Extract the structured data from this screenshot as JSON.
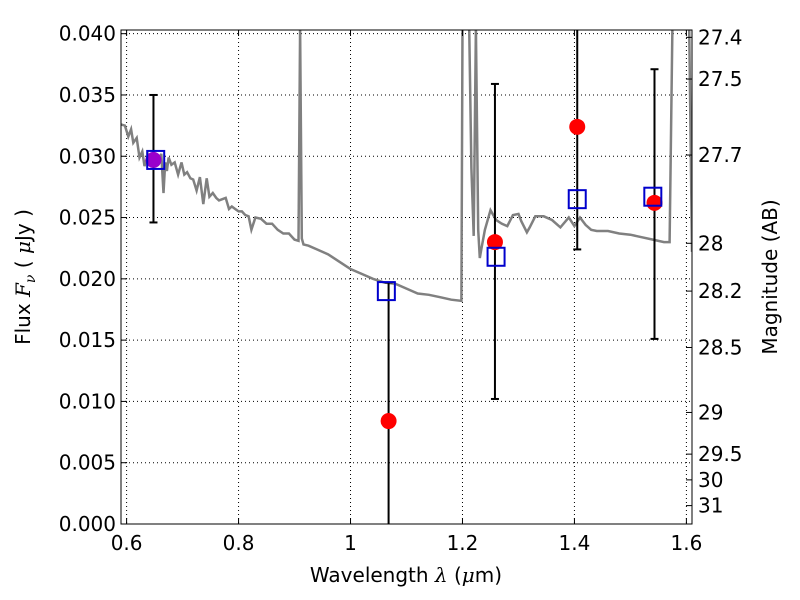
{
  "chart_data": {
    "type": "scatter",
    "title": "",
    "xlabel": "Wavelength  λ (μm)",
    "ylabel": "Flux  F_ν  ( μJy )",
    "y2label": "Magnitude (AB)",
    "xlim": [
      0.59,
      1.61
    ],
    "ylim": [
      0.0,
      0.0403
    ],
    "grid": true,
    "x_ticks": [
      0.6,
      0.8,
      1.0,
      1.2,
      1.4,
      1.6
    ],
    "x_tick_labels": [
      "0.6",
      "0.8",
      "1",
      "1.2",
      "1.4",
      "1.6"
    ],
    "y_ticks": [
      0.0,
      0.005,
      0.01,
      0.015,
      0.02,
      0.025,
      0.03,
      0.035,
      0.04
    ],
    "y_tick_labels": [
      "0.000",
      "0.005",
      "0.010",
      "0.015",
      "0.020",
      "0.025",
      "0.030",
      "0.035",
      "0.040"
    ],
    "y2_ticks": [
      {
        "label": "27.4",
        "flux": 0.0397
      },
      {
        "label": "27.5",
        "flux": 0.0363
      },
      {
        "label": "27.7",
        "flux": 0.0301
      },
      {
        "label": "28",
        "flux": 0.0229
      },
      {
        "label": "28.2",
        "flux": 0.019
      },
      {
        "label": "28.5",
        "flux": 0.0144
      },
      {
        "label": "29",
        "flux": 0.0091
      },
      {
        "label": "29.5",
        "flux": 0.0057
      },
      {
        "label": "30",
        "flux": 0.0036
      },
      {
        "label": "31",
        "flux": 0.0015
      }
    ],
    "colors": {
      "model": "#808080",
      "observed": "#ff0000",
      "model_photometry": "#0000cc",
      "errorbar": "#000000",
      "overlap": "#9900cc"
    },
    "series": [
      {
        "role": "model_spectrum",
        "x": [
          0.59,
          0.597,
          0.603,
          0.608,
          0.612,
          0.618,
          0.623,
          0.628,
          0.632,
          0.638,
          0.643,
          0.648,
          0.653,
          0.657,
          0.662,
          0.666,
          0.669,
          0.672,
          0.675,
          0.68,
          0.686,
          0.692,
          0.698,
          0.703,
          0.708,
          0.714,
          0.719,
          0.725,
          0.731,
          0.737,
          0.743,
          0.748,
          0.754,
          0.76,
          0.765,
          0.771,
          0.777,
          0.783,
          0.788,
          0.794,
          0.8,
          0.806,
          0.812,
          0.818,
          0.823,
          0.83,
          0.84,
          0.85,
          0.86,
          0.87,
          0.88,
          0.89,
          0.9,
          0.907,
          0.91,
          0.913,
          0.916,
          0.925,
          0.94,
          0.96,
          0.98,
          1.0,
          1.02,
          1.04,
          1.06,
          1.08,
          1.1,
          1.12,
          1.14,
          1.16,
          1.18,
          1.198,
          1.2,
          1.203,
          1.208,
          1.212,
          1.216,
          1.22,
          1.224,
          1.228,
          1.231,
          1.234,
          1.24,
          1.25,
          1.26,
          1.27,
          1.28,
          1.29,
          1.3,
          1.305,
          1.315,
          1.32,
          1.33,
          1.345,
          1.36,
          1.375,
          1.39,
          1.4,
          1.41,
          1.42,
          1.43,
          1.44,
          1.46,
          1.48,
          1.5,
          1.52,
          1.54,
          1.56,
          1.57,
          1.575,
          1.58,
          1.585,
          1.59,
          1.595,
          1.6,
          1.605,
          1.61
        ],
        "y": [
          0.0326,
          0.0325,
          0.0316,
          0.0322,
          0.0311,
          0.0315,
          0.0299,
          0.0304,
          0.0292,
          0.0301,
          0.0292,
          0.0304,
          0.0299,
          0.0296,
          0.0302,
          0.027,
          0.0295,
          0.0288,
          0.0299,
          0.0293,
          0.0295,
          0.0285,
          0.0295,
          0.0285,
          0.0287,
          0.0282,
          0.0281,
          0.0272,
          0.0283,
          0.0261,
          0.0282,
          0.0267,
          0.027,
          0.0266,
          0.0264,
          0.0265,
          0.0266,
          0.0257,
          0.0259,
          0.0257,
          0.0255,
          0.0255,
          0.0252,
          0.0251,
          0.024,
          0.025,
          0.0249,
          0.0245,
          0.0245,
          0.024,
          0.0237,
          0.0237,
          0.0232,
          0.0231,
          0.0405,
          0.0233,
          0.0228,
          0.0227,
          0.0224,
          0.022,
          0.0214,
          0.0208,
          0.0204,
          0.02,
          0.0197,
          0.0196,
          0.0192,
          0.0188,
          0.0187,
          0.0185,
          0.0183,
          0.0182,
          0.0405,
          0.0405,
          0.0405,
          0.0405,
          0.029,
          0.0235,
          0.0405,
          0.024,
          0.0217,
          0.0225,
          0.024,
          0.0256,
          0.0248,
          0.0245,
          0.0243,
          0.0252,
          0.0253,
          0.0247,
          0.0238,
          0.0242,
          0.0251,
          0.0251,
          0.0248,
          0.0242,
          0.025,
          0.0243,
          0.025,
          0.0244,
          0.024,
          0.0239,
          0.0239,
          0.0237,
          0.0236,
          0.0234,
          0.0232,
          0.023,
          0.023,
          0.0405,
          0.0405,
          0.0405,
          0.0405,
          0.0405,
          0.0405,
          0.0405,
          0.0222
        ]
      },
      {
        "role": "observed_flux",
        "x": [
          0.648,
          1.068,
          1.258,
          1.405,
          1.543
        ],
        "y": [
          0.0297,
          0.0084,
          0.023,
          0.0324,
          0.0262
        ],
        "yerr_low": [
          0.0051,
          0.009,
          0.0128,
          0.01,
          0.0111
        ],
        "yerr_high": [
          0.0053,
          0.0113,
          0.0129,
          0.0096,
          0.0109
        ]
      },
      {
        "role": "model_photometry",
        "x": [
          0.652,
          1.064,
          1.26,
          1.405,
          1.54
        ],
        "y": [
          0.0297,
          0.019,
          0.0218,
          0.0265,
          0.0267
        ]
      }
    ]
  }
}
